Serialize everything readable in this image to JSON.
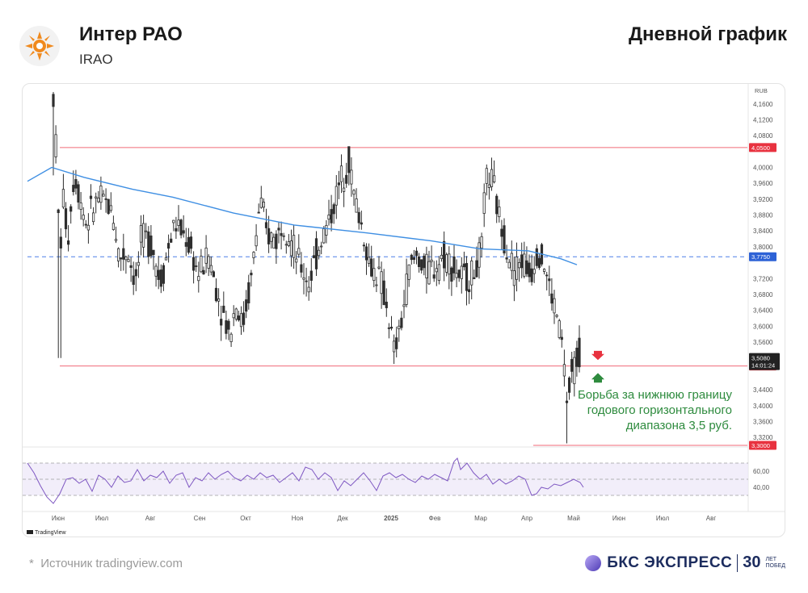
{
  "header": {
    "company": "Интер РАО",
    "ticker": "IRAO",
    "chart_type": "Дневной график"
  },
  "footer": {
    "source": "Источник tradingview.com",
    "source_star": "*",
    "brand": "БКС ЭКСПРЕСС",
    "anniversary_num": "30",
    "anniversary_sub1": "ЛЕТ",
    "anniversary_sub2": "ПОБЕД"
  },
  "colors": {
    "up": "#2e2e2e",
    "ma": "#3f8fe3",
    "level": "#f06a78",
    "level_badge": "#e8323f",
    "dash": "#4c7ee8",
    "dash_badge": "#2d62d6",
    "rsi": "#7e57c2",
    "annotation": "#2e8b3e",
    "arrow_down": "#e8323f",
    "arrow_up": "#2e8b3e"
  },
  "chart_data": {
    "type": "candlestick",
    "currency": "RUB",
    "ylim": [
      3.3,
      4.19
    ],
    "y_ticks": [
      "4,1600",
      "4,1200",
      "4,0800",
      "4,0000",
      "3,9600",
      "3,9200",
      "3,8800",
      "3,8400",
      "3,8000",
      "3,7200",
      "3,6800",
      "3,6400",
      "3,6000",
      "3,5600",
      "3,4400",
      "3,4000",
      "3,3600",
      "3,3200"
    ],
    "x_ticks": [
      "Июн",
      "Июл",
      "Авг",
      "Сен",
      "Окт",
      "Ноя",
      "Дек",
      "2025",
      "Фев",
      "Мар",
      "Апр",
      "Май",
      "Июн",
      "Июл",
      "Авг"
    ],
    "levels": [
      {
        "value": 4.05,
        "label": "4,0500",
        "style": "solid"
      },
      {
        "value": 3.775,
        "label": "3,7750",
        "style": "dashed"
      },
      {
        "value": 3.5,
        "label": "3,5000",
        "style": "solid"
      },
      {
        "value": 3.3,
        "label": "3,3000",
        "style": "solid"
      }
    ],
    "last_price": {
      "label": "3,5080",
      "time": "14:01:24",
      "value": 3.508
    },
    "moving_average_points": [
      [
        0,
        3.965
      ],
      [
        30,
        4.0
      ],
      [
        70,
        3.975
      ],
      [
        130,
        3.945
      ],
      [
        180,
        3.925
      ],
      [
        255,
        3.885
      ],
      [
        330,
        3.855
      ],
      [
        420,
        3.835
      ],
      [
        500,
        3.815
      ],
      [
        560,
        3.795
      ],
      [
        620,
        3.79
      ],
      [
        660,
        3.77
      ],
      [
        680,
        3.755
      ]
    ],
    "price_path": [
      [
        0,
        4.18
      ],
      [
        4,
        4.02
      ],
      [
        8,
        3.76
      ],
      [
        12,
        3.93
      ],
      [
        18,
        3.82
      ],
      [
        26,
        3.99
      ],
      [
        40,
        3.86
      ],
      [
        55,
        3.92
      ],
      [
        66,
        3.91
      ],
      [
        74,
        3.88
      ],
      [
        82,
        3.77
      ],
      [
        92,
        3.79
      ],
      [
        102,
        3.71
      ],
      [
        110,
        3.83
      ],
      [
        122,
        3.81
      ],
      [
        132,
        3.71
      ],
      [
        150,
        3.86
      ],
      [
        165,
        3.82
      ],
      [
        180,
        3.73
      ],
      [
        192,
        3.78
      ],
      [
        206,
        3.66
      ],
      [
        218,
        3.58
      ],
      [
        226,
        3.66
      ],
      [
        234,
        3.6
      ],
      [
        245,
        3.72
      ],
      [
        256,
        3.92
      ],
      [
        264,
        3.83
      ],
      [
        276,
        3.82
      ],
      [
        286,
        3.87
      ],
      [
        296,
        3.8
      ],
      [
        306,
        3.75
      ],
      [
        316,
        3.71
      ],
      [
        330,
        3.81
      ],
      [
        342,
        3.87
      ],
      [
        356,
        3.97
      ],
      [
        366,
        4.02
      ],
      [
        372,
        3.93
      ],
      [
        382,
        3.85
      ],
      [
        392,
        3.75
      ],
      [
        402,
        3.73
      ],
      [
        412,
        3.66
      ],
      [
        422,
        3.53
      ],
      [
        430,
        3.6
      ],
      [
        440,
        3.74
      ],
      [
        450,
        3.78
      ],
      [
        462,
        3.74
      ],
      [
        472,
        3.75
      ],
      [
        484,
        3.78
      ],
      [
        494,
        3.75
      ],
      [
        506,
        3.72
      ],
      [
        520,
        3.73
      ],
      [
        530,
        3.79
      ],
      [
        536,
        3.98
      ],
      [
        544,
        3.96
      ],
      [
        552,
        3.87
      ],
      [
        560,
        3.81
      ],
      [
        570,
        3.74
      ],
      [
        580,
        3.77
      ],
      [
        590,
        3.73
      ],
      [
        600,
        3.8
      ],
      [
        608,
        3.75
      ],
      [
        616,
        3.68
      ],
      [
        624,
        3.62
      ],
      [
        630,
        3.55
      ],
      [
        636,
        3.4
      ],
      [
        642,
        3.48
      ],
      [
        650,
        3.53
      ],
      [
        658,
        3.56
      ],
      [
        666,
        3.52
      ],
      [
        674,
        3.6
      ],
      [
        682,
        3.51
      ],
      [
        688,
        3.52
      ]
    ],
    "rsi": {
      "ylim": [
        20,
        80
      ],
      "ticks": [
        "60,00",
        "40,00"
      ],
      "band": [
        30,
        70
      ],
      "points": [
        [
          0,
          70
        ],
        [
          8,
          58
        ],
        [
          16,
          42
        ],
        [
          24,
          28
        ],
        [
          32,
          20
        ],
        [
          40,
          32
        ],
        [
          48,
          50
        ],
        [
          56,
          52
        ],
        [
          64,
          45
        ],
        [
          72,
          50
        ],
        [
          80,
          35
        ],
        [
          88,
          55
        ],
        [
          96,
          50
        ],
        [
          104,
          40
        ],
        [
          112,
          54
        ],
        [
          120,
          46
        ],
        [
          128,
          48
        ],
        [
          136,
          62
        ],
        [
          144,
          48
        ],
        [
          152,
          55
        ],
        [
          160,
          52
        ],
        [
          168,
          60
        ],
        [
          176,
          45
        ],
        [
          184,
          55
        ],
        [
          192,
          58
        ],
        [
          200,
          40
        ],
        [
          208,
          52
        ],
        [
          216,
          48
        ],
        [
          224,
          58
        ],
        [
          232,
          50
        ],
        [
          240,
          56
        ],
        [
          248,
          60
        ],
        [
          256,
          52
        ],
        [
          264,
          48
        ],
        [
          272,
          55
        ],
        [
          280,
          50
        ],
        [
          288,
          58
        ],
        [
          296,
          52
        ],
        [
          304,
          55
        ],
        [
          312,
          46
        ],
        [
          320,
          52
        ],
        [
          328,
          58
        ],
        [
          336,
          48
        ],
        [
          344,
          65
        ],
        [
          352,
          62
        ],
        [
          360,
          50
        ],
        [
          368,
          58
        ],
        [
          376,
          52
        ],
        [
          384,
          36
        ],
        [
          392,
          48
        ],
        [
          400,
          42
        ],
        [
          408,
          50
        ],
        [
          416,
          58
        ],
        [
          424,
          48
        ],
        [
          432,
          36
        ],
        [
          440,
          54
        ],
        [
          448,
          58
        ],
        [
          456,
          52
        ],
        [
          464,
          56
        ],
        [
          472,
          50
        ],
        [
          480,
          46
        ],
        [
          488,
          54
        ],
        [
          496,
          50
        ],
        [
          504,
          56
        ],
        [
          512,
          52
        ],
        [
          520,
          48
        ],
        [
          528,
          72
        ],
        [
          532,
          76
        ],
        [
          536,
          62
        ],
        [
          544,
          70
        ],
        [
          552,
          58
        ],
        [
          560,
          50
        ],
        [
          568,
          56
        ],
        [
          576,
          44
        ],
        [
          584,
          50
        ],
        [
          592,
          44
        ],
        [
          600,
          48
        ],
        [
          608,
          54
        ],
        [
          616,
          50
        ],
        [
          624,
          30
        ],
        [
          630,
          32
        ],
        [
          636,
          40
        ],
        [
          644,
          38
        ],
        [
          652,
          44
        ],
        [
          660,
          42
        ],
        [
          668,
          46
        ],
        [
          676,
          50
        ],
        [
          684,
          46
        ],
        [
          688,
          40
        ]
      ]
    },
    "annotation": {
      "lines": [
        "Борьба за нижнюю границу",
        "годового горизонтального",
        "диапазона 3,5 руб."
      ]
    }
  },
  "watermark": "TradingView"
}
